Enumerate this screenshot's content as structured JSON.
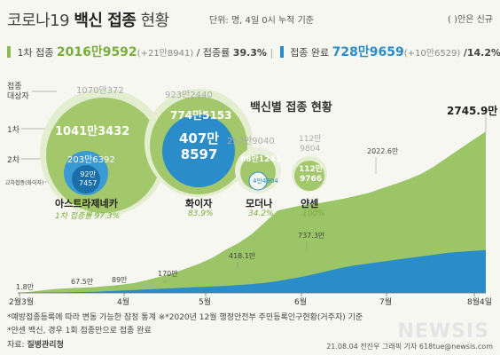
{
  "header": {
    "title_prefix": "코로나19",
    "title_bold": "백신 접종",
    "title_suffix": "현황",
    "unit_note": "단위: 명, 4일 0시 누적 기준",
    "paren_note": "( )안은 신규"
  },
  "summary": {
    "first_label": "1차 접종",
    "first_value": "2016만9592",
    "first_new": "(+21만8941)",
    "first_rate_label": "/ 접종률",
    "first_rate": "39.3%",
    "full_label": "접종 완료",
    "full_value": "728만9659",
    "full_new": "(+10만6529)",
    "full_rate": "/14.2%"
  },
  "bubbles": {
    "side_labels": {
      "target": "접종\n대상자",
      "first": "1차",
      "second": "2차",
      "cross": "교차접종(화이자)"
    },
    "vaccines": [
      {
        "name": "아스트라제네카",
        "target": "1070만372",
        "first": "1041만3432",
        "second": "203만6392",
        "cross_a": "92만",
        "cross_b": "7457",
        "rate": "1차 접종률 97.3%"
      },
      {
        "name": "화이자",
        "target": "923만2440",
        "first": "774만5153",
        "second_a": "407만",
        "second_b": "8597",
        "rate": "83.9%"
      },
      {
        "name": "모더나",
        "target": "257만9040",
        "first": "88만1241",
        "second": "4만4904",
        "rate": "34.2%"
      },
      {
        "name": "얀센",
        "target_a": "112만",
        "target_b": "9804",
        "first_a": "112만",
        "first_b": "9766",
        "rate": "100%"
      }
    ]
  },
  "chart_title": "백신별 접종 현황",
  "chart_data": {
    "type": "area",
    "x_ticks": [
      "2월3월",
      "4월",
      "5월",
      "6월",
      "7월",
      "8월4일"
    ],
    "annotations": [
      {
        "label": "1.8만",
        "value": 1.8
      },
      {
        "label": "67.5만",
        "value": 67.5
      },
      {
        "label": "89만",
        "value": 89
      },
      {
        "label": "170만",
        "value": 170
      },
      {
        "label": "418.1만",
        "value": 418.1
      },
      {
        "label": "737.3만",
        "value": 737.3
      },
      {
        "label": "2022.6만",
        "value": 2022.6
      },
      {
        "label": "2745.9만",
        "value": 2745.9
      }
    ],
    "series": [
      {
        "color": "#9bc567",
        "values": [
          1.8,
          20,
          45,
          67.5,
          80,
          89,
          100,
          120,
          140,
          170,
          220,
          280,
          340,
          418.1,
          500,
          600,
          737.3,
          850,
          1000,
          1200,
          1400,
          1450,
          1500,
          1520,
          1560,
          1600,
          1650,
          1700,
          1780,
          1850,
          1930,
          2022.6,
          2150,
          2300,
          2450,
          2600,
          2745.9
        ]
      },
      {
        "color": "#2a8cc8",
        "values": [
          0,
          0,
          2,
          5,
          10,
          15,
          20,
          30,
          40,
          50,
          60,
          70,
          80,
          90,
          100,
          110,
          120,
          135,
          150,
          170,
          200,
          240,
          280,
          330,
          380,
          430,
          470,
          500,
          530,
          560,
          590,
          620,
          650,
          680,
          700,
          715,
          728.97
        ]
      }
    ],
    "ylim": [
      0,
      2900
    ]
  },
  "footer": {
    "line1": "*예방접종등록에 따라 변동 가능한 잠정 통계  ※*2020년 12월 행정안전부 주민등록인구현황(거주자) 기준",
    "line2": "*얀센 백신, 경우 1회 접종만으로 접종 완료",
    "source_label": "자료:",
    "source": "질병관리청",
    "credit": "21.08.04 전진우 그래픽 기자 618tue@newsis.com",
    "watermark": "NEWSIS"
  }
}
